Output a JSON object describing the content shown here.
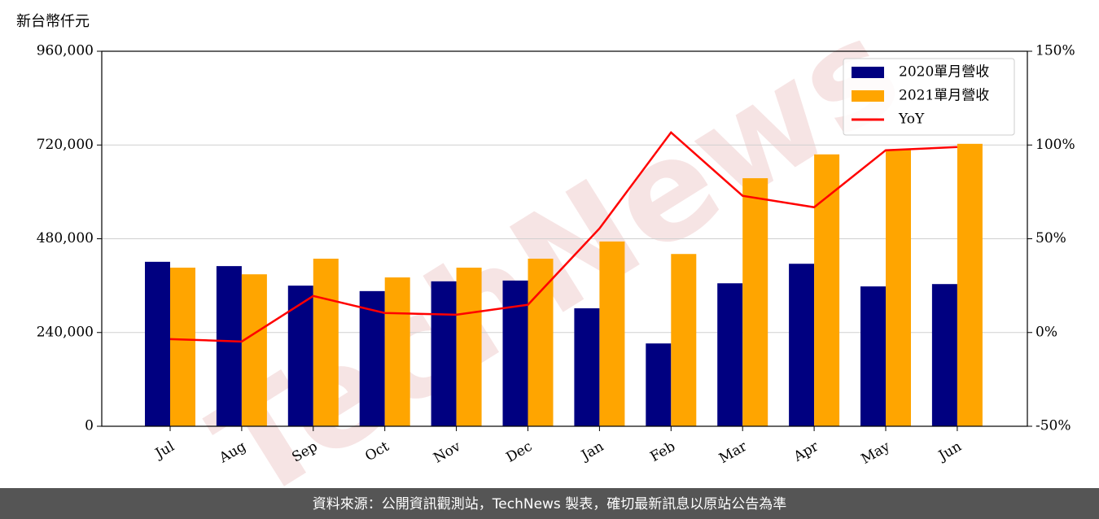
{
  "chart_data": {
    "type": "bar-line",
    "y_label": "新台幣仟元",
    "watermark": "TechNews",
    "footer": "資料來源：公開資訊觀測站，TechNews 製表，確切最新訊息以原站公告為準",
    "categories": [
      "Jul",
      "Aug",
      "Sep",
      "Oct",
      "Nov",
      "Dec",
      "Jan",
      "Feb",
      "Mar",
      "Apr",
      "May",
      "Jun"
    ],
    "series": [
      {
        "name": "2020單月營收",
        "color": "#000080",
        "type": "bar",
        "values": [
          421000,
          410000,
          360000,
          346000,
          371000,
          373000,
          302000,
          212000,
          366000,
          416000,
          358000,
          364000
        ]
      },
      {
        "name": "2021單月營收",
        "color": "#ffa500",
        "type": "bar",
        "values": [
          406000,
          389000,
          429000,
          381000,
          406000,
          429000,
          473000,
          441000,
          635000,
          696000,
          708000,
          723000
        ]
      },
      {
        "name": "YoY",
        "color": "#ff0000",
        "type": "line",
        "axis": "y2",
        "values": [
          -3.5,
          -4.8,
          19.5,
          10.4,
          9.5,
          14.8,
          55.5,
          106.7,
          72.9,
          66.8,
          97.2,
          98.9
        ]
      }
    ],
    "ylim": [
      0,
      960000
    ],
    "yticks": [
      0,
      {
        "value": 240000,
        "label": "240,000"
      },
      {
        "value": 480000,
        "label": "480,000"
      },
      {
        "value": 720000,
        "label": "720,000"
      },
      {
        "value": 960000,
        "label": "960,000"
      }
    ],
    "y2lim": [
      -50,
      150
    ],
    "y2ticks": [
      {
        "value": -50,
        "label": "-50%"
      },
      {
        "value": 0,
        "label": "0%"
      },
      {
        "value": 50,
        "label": "50%"
      },
      {
        "value": 100,
        "label": "100%"
      },
      {
        "value": 150,
        "label": "150%"
      }
    ],
    "grid": true,
    "legend": "upper right"
  }
}
